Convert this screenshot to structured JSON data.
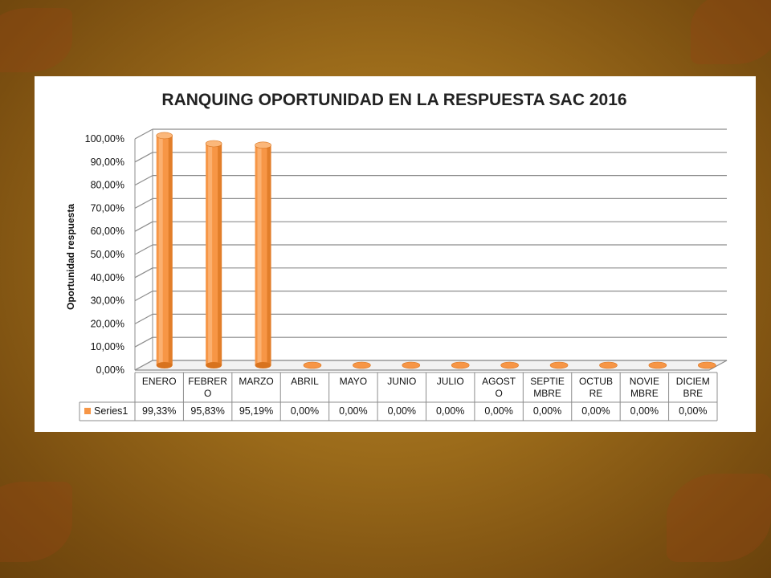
{
  "chart_data": {
    "type": "bar",
    "title": "RANQUING OPORTUNIDAD EN LA RESPUESTA  SAC  2016",
    "ylabel": "Oportunidad respuesta",
    "ylim": [
      0,
      100
    ],
    "y_ticks": [
      "0,00%",
      "10,00%",
      "20,00%",
      "30,00%",
      "40,00%",
      "50,00%",
      "60,00%",
      "70,00%",
      "80,00%",
      "90,00%",
      "100,00%"
    ],
    "categories": [
      [
        "ENERO"
      ],
      [
        "FEBRER",
        "O"
      ],
      [
        "MARZO"
      ],
      [
        "ABRIL"
      ],
      [
        "MAYO"
      ],
      [
        "JUNIO"
      ],
      [
        "JULIO"
      ],
      [
        "AGOST",
        "O"
      ],
      [
        "SEPTIE",
        "MBRE"
      ],
      [
        "OCTUB",
        "RE"
      ],
      [
        "NOVIE",
        "MBRE"
      ],
      [
        "DICIEM",
        "BRE"
      ]
    ],
    "series": [
      {
        "name": "Series1",
        "values": [
          99.33,
          95.83,
          95.19,
          0,
          0,
          0,
          0,
          0,
          0,
          0,
          0,
          0
        ],
        "labels": [
          "99,33%",
          "95,83%",
          "95,19%",
          "0,00%",
          "0,00%",
          "0,00%",
          "0,00%",
          "0,00%",
          "0,00%",
          "0,00%",
          "0,00%",
          "0,00%"
        ]
      }
    ],
    "colors": {
      "bar": "#f79646",
      "bar_dark": "#d8731e",
      "bar_light": "#fbb77a",
      "grid": "#8c8c8c"
    },
    "grid": true,
    "legend": "data-table"
  }
}
